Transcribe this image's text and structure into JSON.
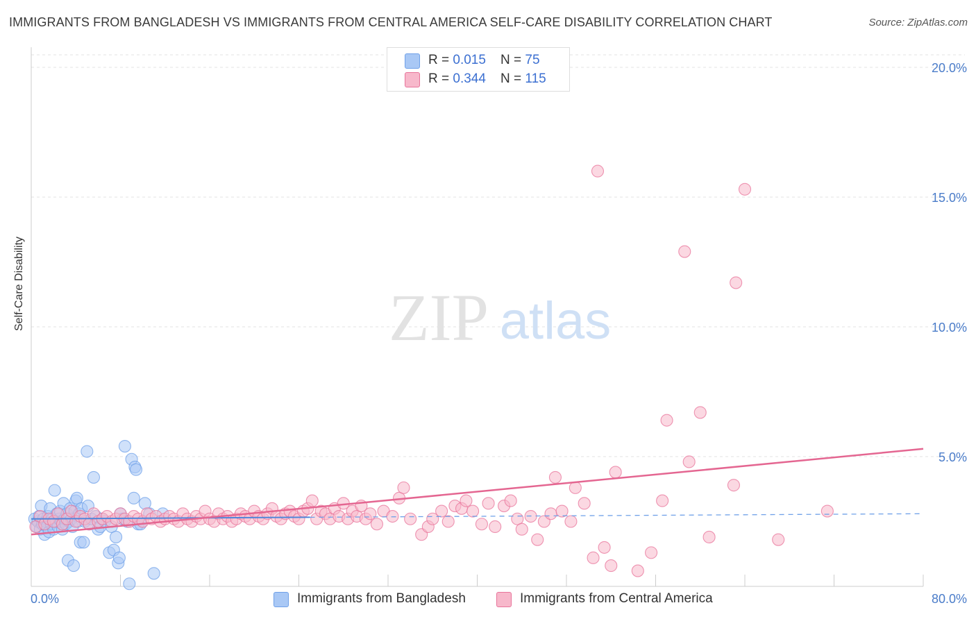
{
  "header": {
    "title": "IMMIGRANTS FROM BANGLADESH VS IMMIGRANTS FROM CENTRAL AMERICA SELF-CARE DISABILITY CORRELATION CHART",
    "source": "Source: ZipAtlas.com"
  },
  "watermark": {
    "zip": "ZIP",
    "atlas": "atlas"
  },
  "legend": {
    "rows": [
      {
        "r_label": "R = ",
        "r_value": "0.015",
        "n_label": "N = ",
        "n_value": "75",
        "color": "#a9c8f5"
      },
      {
        "r_label": "R = ",
        "r_value": "0.344",
        "n_label": "N = ",
        "n_value": "115",
        "color": "#f7b8cb"
      }
    ]
  },
  "chart_data": {
    "type": "scatter",
    "title": "IMMIGRANTS FROM BANGLADESH VS IMMIGRANTS FROM CENTRAL AMERICA SELF-CARE DISABILITY CORRELATION CHART",
    "xlabel": "",
    "ylabel": "Self-Care Disability",
    "xlim": [
      0,
      80
    ],
    "ylim": [
      0,
      21
    ],
    "x_tick_labels": [
      "0.0%",
      "80.0%"
    ],
    "y_ticks": [
      5,
      10,
      15,
      20
    ],
    "y_tick_labels": [
      "5.0%",
      "10.0%",
      "15.0%",
      "20.0%"
    ],
    "grid": true,
    "legend_position": "top-center",
    "series": [
      {
        "name": "Immigrants from Bangladesh",
        "color": "#6fa0e8",
        "fill": "#a9c8f5",
        "R": 0.015,
        "N": 75,
        "trend": {
          "x": [
            0,
            80
          ],
          "y": [
            2.6,
            2.8
          ],
          "solid_until_x": 25
        },
        "points": [
          [
            0.3,
            2.6
          ],
          [
            0.5,
            2.3
          ],
          [
            0.6,
            2.5
          ],
          [
            0.7,
            2.7
          ],
          [
            0.8,
            2.2
          ],
          [
            0.9,
            3.1
          ],
          [
            1.0,
            2.4
          ],
          [
            1.1,
            2.6
          ],
          [
            1.2,
            2.0
          ],
          [
            1.3,
            2.5
          ],
          [
            1.4,
            2.3
          ],
          [
            1.5,
            2.7
          ],
          [
            1.6,
            2.1
          ],
          [
            1.7,
            3.0
          ],
          [
            1.8,
            2.4
          ],
          [
            1.9,
            2.6
          ],
          [
            2.0,
            2.2
          ],
          [
            2.1,
            3.7
          ],
          [
            2.2,
            2.5
          ],
          [
            2.3,
            2.8
          ],
          [
            2.4,
            2.3
          ],
          [
            2.5,
            2.6
          ],
          [
            2.6,
            2.9
          ],
          [
            2.7,
            2.5
          ],
          [
            2.8,
            2.2
          ],
          [
            2.9,
            3.2
          ],
          [
            3.0,
            2.6
          ],
          [
            3.1,
            2.4
          ],
          [
            3.2,
            2.8
          ],
          [
            3.3,
            1.0
          ],
          [
            3.4,
            2.5
          ],
          [
            3.5,
            3.0
          ],
          [
            3.6,
            2.6
          ],
          [
            3.7,
            2.3
          ],
          [
            3.8,
            0.8
          ],
          [
            3.9,
            2.9
          ],
          [
            4.0,
            3.3
          ],
          [
            4.1,
            3.4
          ],
          [
            4.2,
            2.5
          ],
          [
            4.3,
            2.8
          ],
          [
            4.4,
            1.7
          ],
          [
            4.5,
            3.0
          ],
          [
            4.7,
            1.7
          ],
          [
            4.8,
            2.5
          ],
          [
            5.0,
            5.2
          ],
          [
            5.1,
            3.1
          ],
          [
            5.2,
            2.4
          ],
          [
            5.4,
            2.6
          ],
          [
            5.6,
            4.2
          ],
          [
            5.8,
            2.7
          ],
          [
            6.0,
            2.2
          ],
          [
            6.2,
            2.3
          ],
          [
            6.4,
            2.6
          ],
          [
            6.6,
            2.5
          ],
          [
            7.0,
            1.3
          ],
          [
            7.2,
            2.3
          ],
          [
            7.4,
            1.4
          ],
          [
            7.6,
            1.9
          ],
          [
            7.8,
            0.9
          ],
          [
            7.9,
            1.1
          ],
          [
            8.0,
            2.8
          ],
          [
            8.2,
            2.6
          ],
          [
            8.4,
            5.4
          ],
          [
            8.6,
            2.5
          ],
          [
            8.8,
            0.1
          ],
          [
            9.0,
            4.9
          ],
          [
            9.2,
            3.4
          ],
          [
            9.3,
            4.6
          ],
          [
            9.4,
            4.5
          ],
          [
            9.6,
            2.4
          ],
          [
            9.8,
            2.4
          ],
          [
            10.2,
            3.2
          ],
          [
            10.6,
            2.8
          ],
          [
            11.0,
            0.5
          ],
          [
            11.8,
            2.8
          ]
        ]
      },
      {
        "name": "Immigrants from Central America",
        "color": "#e8739a",
        "fill": "#f7b8cb",
        "R": 0.344,
        "N": 115,
        "trend": {
          "x": [
            0,
            80
          ],
          "y": [
            2.0,
            5.3
          ]
        },
        "points": [
          [
            0.4,
            2.3
          ],
          [
            0.8,
            2.7
          ],
          [
            1.2,
            2.4
          ],
          [
            1.6,
            2.6
          ],
          [
            2.0,
            2.5
          ],
          [
            2.4,
            2.8
          ],
          [
            2.8,
            2.4
          ],
          [
            3.2,
            2.6
          ],
          [
            3.6,
            2.9
          ],
          [
            4.0,
            2.5
          ],
          [
            4.4,
            2.7
          ],
          [
            4.8,
            2.6
          ],
          [
            5.2,
            2.4
          ],
          [
            5.6,
            2.8
          ],
          [
            6.0,
            2.5
          ],
          [
            6.4,
            2.6
          ],
          [
            6.8,
            2.7
          ],
          [
            7.2,
            2.5
          ],
          [
            7.6,
            2.6
          ],
          [
            8.0,
            2.8
          ],
          [
            8.4,
            2.6
          ],
          [
            8.8,
            2.5
          ],
          [
            9.2,
            2.7
          ],
          [
            9.6,
            2.6
          ],
          [
            10.0,
            2.5
          ],
          [
            10.4,
            2.8
          ],
          [
            10.8,
            2.6
          ],
          [
            11.2,
            2.7
          ],
          [
            11.6,
            2.5
          ],
          [
            12.0,
            2.6
          ],
          [
            12.4,
            2.7
          ],
          [
            12.8,
            2.6
          ],
          [
            13.2,
            2.5
          ],
          [
            13.6,
            2.8
          ],
          [
            14.0,
            2.6
          ],
          [
            14.4,
            2.5
          ],
          [
            14.8,
            2.7
          ],
          [
            15.2,
            2.6
          ],
          [
            15.6,
            2.9
          ],
          [
            16.0,
            2.6
          ],
          [
            16.4,
            2.5
          ],
          [
            16.8,
            2.8
          ],
          [
            17.2,
            2.6
          ],
          [
            17.6,
            2.7
          ],
          [
            18.0,
            2.5
          ],
          [
            18.4,
            2.6
          ],
          [
            18.8,
            2.8
          ],
          [
            19.2,
            2.7
          ],
          [
            19.6,
            2.6
          ],
          [
            20.0,
            2.9
          ],
          [
            20.4,
            2.7
          ],
          [
            20.8,
            2.6
          ],
          [
            21.2,
            2.8
          ],
          [
            21.6,
            3.0
          ],
          [
            22.0,
            2.7
          ],
          [
            22.4,
            2.6
          ],
          [
            22.8,
            2.8
          ],
          [
            23.2,
            2.9
          ],
          [
            23.6,
            2.7
          ],
          [
            24.0,
            2.6
          ],
          [
            24.4,
            2.9
          ],
          [
            24.8,
            3.0
          ],
          [
            25.2,
            3.3
          ],
          [
            25.6,
            2.6
          ],
          [
            26.0,
            2.9
          ],
          [
            26.4,
            2.8
          ],
          [
            26.8,
            2.6
          ],
          [
            27.2,
            3.0
          ],
          [
            27.6,
            2.7
          ],
          [
            28.0,
            3.2
          ],
          [
            28.4,
            2.6
          ],
          [
            28.8,
            2.9
          ],
          [
            29.2,
            2.7
          ],
          [
            29.6,
            3.1
          ],
          [
            30.0,
            2.6
          ],
          [
            30.4,
            2.8
          ],
          [
            31.0,
            2.4
          ],
          [
            31.6,
            2.9
          ],
          [
            32.4,
            2.7
          ],
          [
            33.0,
            3.4
          ],
          [
            33.4,
            3.8
          ],
          [
            34.0,
            2.6
          ],
          [
            35.0,
            2.0
          ],
          [
            35.6,
            2.3
          ],
          [
            36.0,
            2.6
          ],
          [
            36.8,
            2.9
          ],
          [
            37.4,
            2.5
          ],
          [
            38.0,
            3.1
          ],
          [
            38.6,
            3.0
          ],
          [
            39.0,
            3.3
          ],
          [
            39.6,
            2.9
          ],
          [
            40.4,
            2.4
          ],
          [
            41.0,
            3.2
          ],
          [
            41.6,
            2.3
          ],
          [
            42.4,
            3.1
          ],
          [
            43.0,
            3.3
          ],
          [
            43.6,
            2.6
          ],
          [
            44.0,
            2.2
          ],
          [
            44.8,
            2.7
          ],
          [
            45.4,
            1.8
          ],
          [
            46.0,
            2.5
          ],
          [
            46.6,
            2.8
          ],
          [
            47.0,
            4.2
          ],
          [
            47.6,
            2.9
          ],
          [
            48.4,
            2.5
          ],
          [
            48.8,
            3.8
          ],
          [
            49.6,
            3.2
          ],
          [
            50.4,
            1.1
          ],
          [
            50.8,
            16.0
          ],
          [
            51.4,
            1.5
          ],
          [
            52.0,
            0.8
          ],
          [
            52.4,
            4.4
          ],
          [
            54.4,
            0.6
          ],
          [
            55.6,
            1.3
          ],
          [
            56.6,
            3.3
          ],
          [
            57.0,
            6.4
          ],
          [
            58.6,
            12.9
          ],
          [
            59.0,
            4.8
          ],
          [
            60.0,
            6.7
          ],
          [
            60.8,
            1.9
          ],
          [
            63.0,
            3.9
          ],
          [
            63.2,
            11.7
          ],
          [
            64.0,
            15.3
          ],
          [
            67.0,
            1.8
          ],
          [
            71.4,
            2.9
          ]
        ]
      }
    ]
  },
  "bottom_legend": {
    "items": [
      {
        "label": "Immigrants from Bangladesh",
        "color": "#a9c8f5"
      },
      {
        "label": "Immigrants from Central America",
        "color": "#f7b8cb"
      }
    ]
  }
}
